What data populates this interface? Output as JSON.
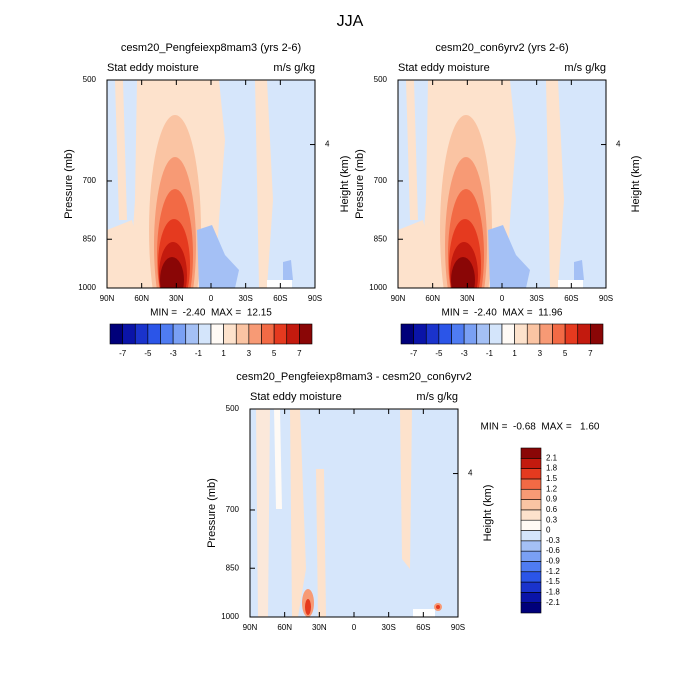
{
  "title": "JJA",
  "chart_data": [
    {
      "type": "contour",
      "title": "cesm20_Pengfeiexp8mam3 (yrs 2-6)",
      "left_string": "Stat eddy moisture",
      "right_string": "m/s g/kg",
      "ylabel": "Pressure (mb)",
      "y2label": "Height (km)",
      "xlim": [
        90,
        -90
      ],
      "xticks": [
        {
          "value": 90,
          "label": "90N"
        },
        {
          "value": 60,
          "label": "60N"
        },
        {
          "value": 30,
          "label": "30N"
        },
        0,
        {
          "value": -30,
          "label": "30S"
        },
        {
          "value": -60,
          "label": "60S"
        },
        {
          "value": -90,
          "label": "90S"
        }
      ],
      "ylim": [
        1000,
        500
      ],
      "ylog": true,
      "yticks": [
        500,
        700,
        850,
        1000
      ],
      "y2lim": [
        0,
        5.8
      ],
      "y2ticks": [
        4
      ],
      "stats": "MIN =  -2.40  MAX =  12.15",
      "colorbar": {
        "orientation": "horizontal",
        "lim": [
          -8,
          8
        ],
        "ticks": [
          -7,
          -5,
          -3,
          -1,
          1,
          3,
          5,
          7
        ],
        "colors": [
          "#00007a",
          "#0a14a8",
          "#1a33cc",
          "#2b55e8",
          "#4f7cf2",
          "#7aa0f4",
          "#a4c0f5",
          "#d4e5fb",
          "#fffaf5",
          "#fde2cc",
          "#fac4a3",
          "#f79a75",
          "#f26a45",
          "#e53a1f",
          "#c31a0e",
          "#8a0606"
        ]
      }
    },
    {
      "type": "contour",
      "title": "cesm20_con6yrv2 (yrs 2-6)",
      "left_string": "Stat eddy moisture",
      "right_string": "m/s g/kg",
      "ylabel": "Pressure (mb)",
      "y2label": "Height (km)",
      "xlim": [
        90,
        -90
      ],
      "xticks": [
        {
          "value": 90,
          "label": "90N"
        },
        {
          "value": 60,
          "label": "60N"
        },
        {
          "value": 30,
          "label": "30N"
        },
        0,
        {
          "value": -30,
          "label": "30S"
        },
        {
          "value": -60,
          "label": "60S"
        },
        {
          "value": -90,
          "label": "90S"
        }
      ],
      "ylim": [
        1000,
        500
      ],
      "ylog": true,
      "yticks": [
        500,
        700,
        850,
        1000
      ],
      "y2lim": [
        0,
        5.8
      ],
      "y2ticks": [
        4
      ],
      "stats": "MIN =  -2.40  MAX =  11.96",
      "colorbar": {
        "orientation": "horizontal",
        "lim": [
          -8,
          8
        ],
        "ticks": [
          -7,
          -5,
          -3,
          -1,
          1,
          3,
          5,
          7
        ],
        "colors": [
          "#00007a",
          "#0a14a8",
          "#1a33cc",
          "#2b55e8",
          "#4f7cf2",
          "#7aa0f4",
          "#a4c0f5",
          "#d4e5fb",
          "#fffaf5",
          "#fde2cc",
          "#fac4a3",
          "#f79a75",
          "#f26a45",
          "#e53a1f",
          "#c31a0e",
          "#8a0606"
        ]
      }
    },
    {
      "type": "contour",
      "title": "cesm20_Pengfeiexp8mam3 - cesm20_con6yrv2",
      "left_string": "Stat eddy moisture",
      "right_string": "m/s g/kg",
      "ylabel": "Pressure (mb)",
      "y2label": "Height (km)",
      "xlim": [
        90,
        -90
      ],
      "xticks": [
        {
          "value": 90,
          "label": "90N"
        },
        {
          "value": 60,
          "label": "60N"
        },
        {
          "value": 30,
          "label": "30N"
        },
        0,
        {
          "value": -30,
          "label": "30S"
        },
        {
          "value": -60,
          "label": "60S"
        },
        {
          "value": -90,
          "label": "90S"
        }
      ],
      "ylim": [
        1000,
        500
      ],
      "ylog": true,
      "yticks": [
        500,
        700,
        850,
        1000
      ],
      "y2lim": [
        0,
        5.8
      ],
      "y2ticks": [
        4
      ],
      "stats": "MIN =  -0.68  MAX =   1.60",
      "colorbar": {
        "orientation": "vertical",
        "lim": [
          -2.4,
          2.4
        ],
        "ticks": [
          -2.1,
          -1.8,
          -1.5,
          -1.2,
          -0.9,
          -0.6,
          -0.3,
          0,
          0.3,
          0.6,
          0.9,
          1.2,
          1.5,
          1.8,
          2.1
        ],
        "colors": [
          "#00007a",
          "#0a14a8",
          "#1a33cc",
          "#2b55e8",
          "#4f7cf2",
          "#7aa0f4",
          "#a4c0f5",
          "#d4e5fb",
          "#fffaf5",
          "#fde2cc",
          "#fac4a3",
          "#f79a75",
          "#f26a45",
          "#e53a1f",
          "#c31a0e",
          "#8a0606"
        ]
      }
    }
  ]
}
